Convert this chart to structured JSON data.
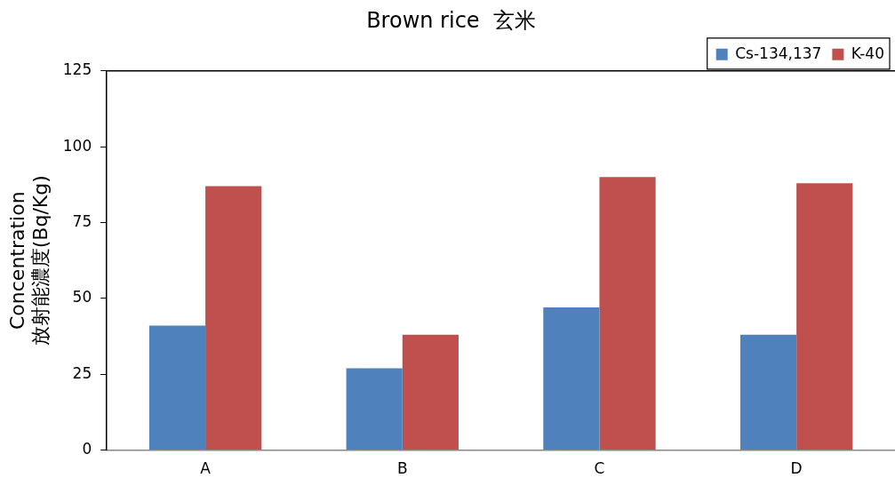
{
  "chart_data": {
    "type": "bar",
    "title": "Brown rice  玄米",
    "ylabel": "Concentration\n放射能濃度(Bq/Kg)",
    "categories": [
      "A",
      "B",
      "C",
      "D"
    ],
    "series": [
      {
        "name": "Cs-134,137",
        "color": "#4f81bd",
        "values": [
          41,
          27,
          47,
          38
        ]
      },
      {
        "name": "K-40",
        "color": "#c0504d",
        "values": [
          87,
          38,
          90,
          88
        ]
      }
    ],
    "ylim": [
      0,
      125
    ],
    "yticks": [
      0,
      25,
      50,
      75,
      100,
      125
    ],
    "legend": "top right"
  }
}
